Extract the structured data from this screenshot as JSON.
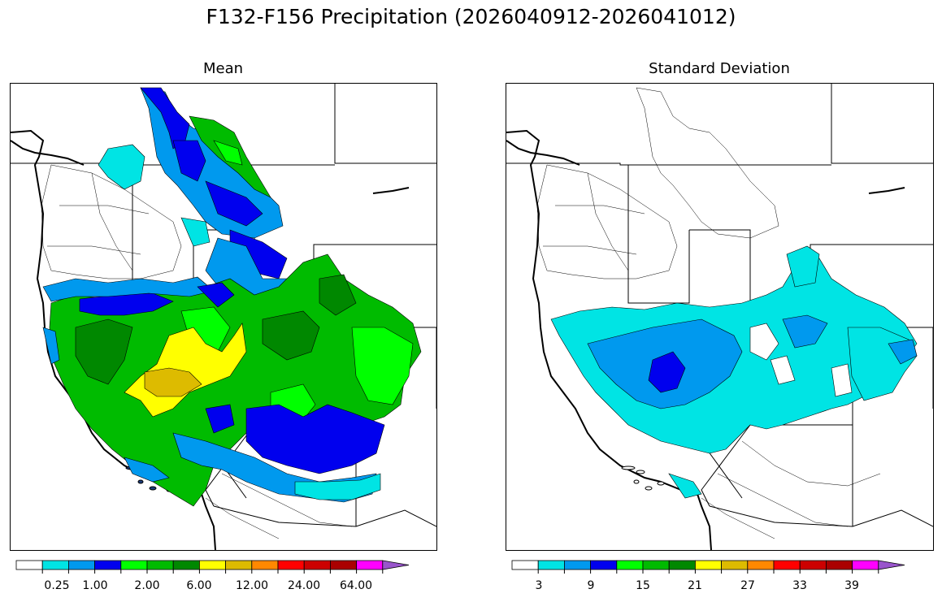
{
  "figure": {
    "title": "F132-F156 Precipitation (2026040912-2026041012)"
  },
  "panels": [
    {
      "title": "Mean",
      "colorbar": {
        "colors": [
          "#ffffff",
          "#00e4e4",
          "#0099ee",
          "#0000ee",
          "#00ff00",
          "#00bb00",
          "#008800",
          "#ffff00",
          "#ddbb00",
          "#ff8800",
          "#ff0000",
          "#cc0000",
          "#aa0000",
          "#ff00ff",
          "#9955cc"
        ],
        "tick_labels": [
          "0.25",
          "1.00",
          "2.00",
          "6.00",
          "12.00",
          "24.00",
          "64.00"
        ],
        "extend": "max"
      }
    },
    {
      "title": "Standard Deviation",
      "colorbar": {
        "colors": [
          "#ffffff",
          "#00e4e4",
          "#0099ee",
          "#0000ee",
          "#00ff00",
          "#00bb00",
          "#008800",
          "#ffff00",
          "#ddbb00",
          "#ff8800",
          "#ff0000",
          "#cc0000",
          "#aa0000",
          "#ff00ff",
          "#9955cc"
        ],
        "tick_labels": [
          "3",
          "9",
          "15",
          "21",
          "27",
          "33",
          "39"
        ],
        "extend": "max"
      }
    }
  ]
}
